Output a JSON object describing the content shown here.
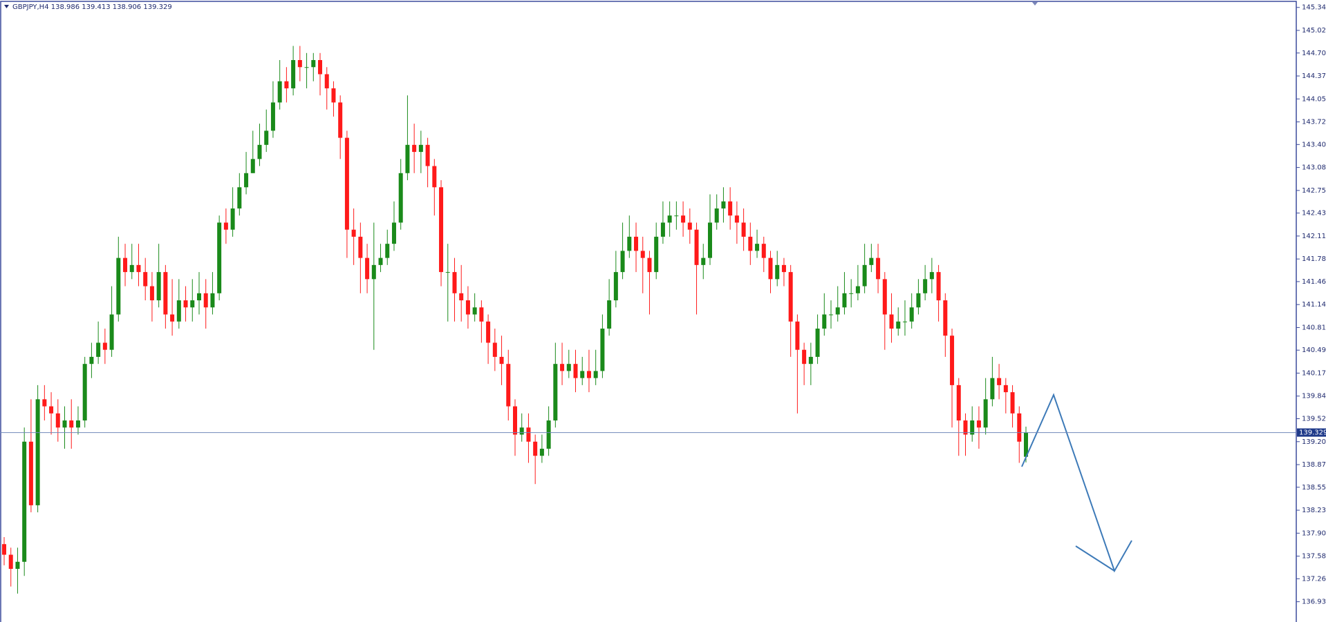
{
  "chart_data": {
    "type": "candlestick",
    "title": "GBPJPY,H4  138.986 139.413 138.906 139.329",
    "up_color": "#1a8a1a",
    "down_color": "#ff1a1a",
    "ylim": [
      136.648,
      145.45
    ],
    "yticks": [
      {
        "value": 145.345,
        "label": "145.345"
      },
      {
        "value": 145.02,
        "label": "145.020"
      },
      {
        "value": 144.7,
        "label": "144.700"
      },
      {
        "value": 144.375,
        "label": "144.375"
      },
      {
        "value": 144.05,
        "label": "144.050"
      },
      {
        "value": 143.725,
        "label": "143.725"
      },
      {
        "value": 143.405,
        "label": "143.405"
      },
      {
        "value": 143.08,
        "label": "143.080"
      },
      {
        "value": 142.755,
        "label": "142.755"
      },
      {
        "value": 142.435,
        "label": "142.435"
      },
      {
        "value": 142.11,
        "label": "142.110"
      },
      {
        "value": 141.785,
        "label": "141.785"
      },
      {
        "value": 141.465,
        "label": "141.465"
      },
      {
        "value": 141.14,
        "label": "141.140"
      },
      {
        "value": 140.815,
        "label": "140.815"
      },
      {
        "value": 140.495,
        "label": "140.495"
      },
      {
        "value": 140.17,
        "label": "140.170"
      },
      {
        "value": 139.845,
        "label": "139.845"
      },
      {
        "value": 139.525,
        "label": "139.525"
      },
      {
        "value": 139.2,
        "label": "139.200"
      },
      {
        "value": 138.875,
        "label": "138.875"
      },
      {
        "value": 138.555,
        "label": "138.555"
      },
      {
        "value": 138.23,
        "label": "138.230"
      },
      {
        "value": 137.905,
        "label": "137.905"
      },
      {
        "value": 137.58,
        "label": "137.580"
      },
      {
        "value": 137.26,
        "label": "137.260"
      },
      {
        "value": 136.935,
        "label": "136.935"
      }
    ],
    "open": [
      137.75,
      137.6,
      137.4,
      137.5,
      139.2,
      138.3,
      139.8,
      139.7,
      139.6,
      139.4,
      139.5,
      139.4,
      139.5,
      140.3,
      140.4,
      140.6,
      140.5,
      141.0,
      141.8,
      141.6,
      141.7,
      141.6,
      141.4,
      141.2,
      141.6,
      141.0,
      140.9,
      141.2,
      141.1,
      141.2,
      141.3,
      141.1,
      141.3,
      142.3,
      142.2,
      142.5,
      142.8,
      143.0,
      143.2,
      143.4,
      143.6,
      144.0,
      144.3,
      144.2,
      144.6,
      144.5,
      144.5,
      144.6,
      144.4,
      144.2,
      144.0,
      143.5,
      142.2,
      142.1,
      141.8,
      141.5,
      141.7,
      141.8,
      142.0,
      142.3,
      143.0,
      143.4,
      143.3,
      143.4,
      143.1,
      142.8,
      141.6,
      141.6,
      141.3,
      141.2,
      141.0,
      141.1,
      140.9,
      140.6,
      140.4,
      140.3,
      139.7,
      139.3,
      139.4,
      139.2,
      139.0,
      139.1,
      139.5,
      140.3,
      140.2,
      140.3,
      140.1,
      140.2,
      140.1,
      140.2,
      140.8,
      141.2,
      141.6,
      141.9,
      142.1,
      141.9,
      141.8,
      141.6,
      142.1,
      142.3,
      142.4,
      142.4,
      142.3,
      142.2,
      141.7,
      141.8,
      142.3,
      142.5,
      142.6,
      142.4,
      142.3,
      142.1,
      141.9,
      142.0,
      141.8,
      141.5,
      141.7,
      141.6,
      140.9,
      140.5,
      140.3,
      140.4,
      140.8,
      141.0,
      141.0,
      141.1,
      141.3,
      141.3,
      141.4,
      141.7,
      141.8,
      141.5,
      141.0,
      140.8,
      140.9,
      140.9,
      141.1,
      141.3,
      141.5,
      141.6,
      141.2,
      140.7,
      140.0,
      139.5,
      139.3,
      139.5,
      139.4,
      139.8,
      140.1,
      140.0,
      139.9,
      139.6,
      138.986
    ],
    "high": [
      137.85,
      137.7,
      137.7,
      139.4,
      139.8,
      140.0,
      140.0,
      139.9,
      139.8,
      139.7,
      139.8,
      139.7,
      140.4,
      140.6,
      140.9,
      140.8,
      141.4,
      142.1,
      142.0,
      142.0,
      142.0,
      141.8,
      141.6,
      142.0,
      141.7,
      141.5,
      141.5,
      141.4,
      141.5,
      141.6,
      141.5,
      141.6,
      142.4,
      142.5,
      142.8,
      143.0,
      143.3,
      143.6,
      143.7,
      143.9,
      144.3,
      144.6,
      144.5,
      144.8,
      144.8,
      144.7,
      144.7,
      144.7,
      144.5,
      144.3,
      144.1,
      143.6,
      142.5,
      142.3,
      142.0,
      142.3,
      142.0,
      142.2,
      142.6,
      143.2,
      144.1,
      143.7,
      143.6,
      143.5,
      143.2,
      142.9,
      142.0,
      141.8,
      141.7,
      141.4,
      141.3,
      141.2,
      141.0,
      140.8,
      140.7,
      140.5,
      139.8,
      139.6,
      139.6,
      139.3,
      139.3,
      139.7,
      140.6,
      140.6,
      140.5,
      140.5,
      140.4,
      140.5,
      140.5,
      141.0,
      141.5,
      141.9,
      142.3,
      142.4,
      142.3,
      142.1,
      141.9,
      142.3,
      142.6,
      142.6,
      142.6,
      142.6,
      142.5,
      142.3,
      142.0,
      142.7,
      142.7,
      142.8,
      142.8,
      142.6,
      142.5,
      142.3,
      142.2,
      142.1,
      141.9,
      141.9,
      141.8,
      141.7,
      141.0,
      140.6,
      140.6,
      141.0,
      141.3,
      141.2,
      141.4,
      141.6,
      141.5,
      141.7,
      142.0,
      142.0,
      142.0,
      141.6,
      141.3,
      141.1,
      141.2,
      141.3,
      141.5,
      141.7,
      141.8,
      141.7,
      141.3,
      140.8,
      140.1,
      139.6,
      139.7,
      139.7,
      140.1,
      140.4,
      140.3,
      140.1,
      140.0,
      139.7,
      139.413
    ],
    "low": [
      137.45,
      137.15,
      137.05,
      137.3,
      138.2,
      138.2,
      139.5,
      139.3,
      139.2,
      139.1,
      139.1,
      139.3,
      139.4,
      140.1,
      140.3,
      140.3,
      140.4,
      140.9,
      141.4,
      141.5,
      141.4,
      141.2,
      140.9,
      141.1,
      140.8,
      140.7,
      140.8,
      140.9,
      140.9,
      141.0,
      140.8,
      141.0,
      141.2,
      142.0,
      142.1,
      142.4,
      142.7,
      143.0,
      143.1,
      143.3,
      143.5,
      143.9,
      144.0,
      144.1,
      144.3,
      144.2,
      144.3,
      144.1,
      143.9,
      143.8,
      143.2,
      141.8,
      141.7,
      141.3,
      141.3,
      140.5,
      141.6,
      141.7,
      141.9,
      142.2,
      142.9,
      143.0,
      143.0,
      142.8,
      142.4,
      141.4,
      140.9,
      140.9,
      140.9,
      140.8,
      140.9,
      140.6,
      140.3,
      140.2,
      140.0,
      139.5,
      139.0,
      139.2,
      138.9,
      138.6,
      138.9,
      139.0,
      139.4,
      140.0,
      140.1,
      139.9,
      140.0,
      139.9,
      140.0,
      140.1,
      140.7,
      141.1,
      141.5,
      141.8,
      141.6,
      141.3,
      141.0,
      141.5,
      142.0,
      142.1,
      142.2,
      142.1,
      142.0,
      141.0,
      141.5,
      141.7,
      142.2,
      142.3,
      142.2,
      142.0,
      141.9,
      141.7,
      141.8,
      141.6,
      141.3,
      141.4,
      141.4,
      140.4,
      139.6,
      140.0,
      140.0,
      140.3,
      140.7,
      140.8,
      140.9,
      141.0,
      141.1,
      141.2,
      141.3,
      141.6,
      141.3,
      140.5,
      140.6,
      140.7,
      140.7,
      140.8,
      141.0,
      141.2,
      141.3,
      140.9,
      140.4,
      139.4,
      139.0,
      139.0,
      139.2,
      139.1,
      139.3,
      139.7,
      139.8,
      139.6,
      139.4,
      138.9,
      138.906
    ],
    "close": [
      137.6,
      137.4,
      137.5,
      139.2,
      138.3,
      139.8,
      139.7,
      139.6,
      139.4,
      139.5,
      139.4,
      139.5,
      140.3,
      140.4,
      140.6,
      140.5,
      141.0,
      141.8,
      141.6,
      141.7,
      141.6,
      141.4,
      141.2,
      141.6,
      141.0,
      140.9,
      141.2,
      141.1,
      141.2,
      141.3,
      141.1,
      141.3,
      142.3,
      142.2,
      142.5,
      142.8,
      143.0,
      143.2,
      143.4,
      143.6,
      144.0,
      144.3,
      144.2,
      144.6,
      144.5,
      144.5,
      144.6,
      144.4,
      144.2,
      144.0,
      143.5,
      142.2,
      142.1,
      141.8,
      141.5,
      141.7,
      141.8,
      142.0,
      142.3,
      143.0,
      143.4,
      143.3,
      143.4,
      143.1,
      142.8,
      141.6,
      141.6,
      141.3,
      141.2,
      141.0,
      141.1,
      140.9,
      140.6,
      140.4,
      140.3,
      139.7,
      139.3,
      139.4,
      139.2,
      139.0,
      139.1,
      139.5,
      140.3,
      140.2,
      140.3,
      140.1,
      140.2,
      140.1,
      140.2,
      140.8,
      141.2,
      141.6,
      141.9,
      142.1,
      141.9,
      141.8,
      141.6,
      142.1,
      142.3,
      142.4,
      142.4,
      142.3,
      142.2,
      141.7,
      141.8,
      142.3,
      142.5,
      142.6,
      142.4,
      142.3,
      142.1,
      141.9,
      142.0,
      141.8,
      141.5,
      141.7,
      141.6,
      140.9,
      140.5,
      140.3,
      140.4,
      140.8,
      141.0,
      141.0,
      141.1,
      141.3,
      141.3,
      141.4,
      141.7,
      141.8,
      141.5,
      141.0,
      140.8,
      140.9,
      140.9,
      141.1,
      141.3,
      141.5,
      141.6,
      141.2,
      140.7,
      140.0,
      139.5,
      139.3,
      139.5,
      139.4,
      139.8,
      140.1,
      140.0,
      139.9,
      139.6,
      139.2,
      139.329
    ]
  }
}
